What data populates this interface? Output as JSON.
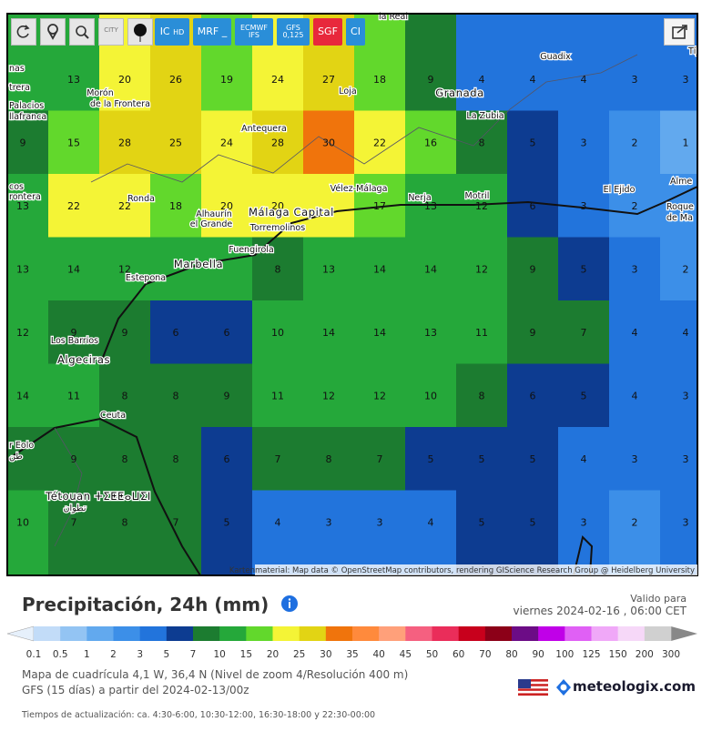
{
  "toolbar": {
    "buttons": [
      {
        "label": "CITY"
      },
      {
        "label": "IC",
        "sub": "HD"
      },
      {
        "label": "MRF",
        "sub": "_"
      },
      {
        "label": "ECMWF",
        "sub": "IFS"
      },
      {
        "label": "GFS",
        "sub": "0,125"
      },
      {
        "label": "SGF"
      },
      {
        "label": "CI"
      }
    ]
  },
  "map": {
    "places": [
      "la Real",
      "Tíj",
      "Guadix",
      "nas",
      "trera",
      "Morón",
      "de la Frontera",
      "Palacios",
      "llafranca",
      "Loja",
      "Granada",
      "La Zubia",
      "Antequera",
      "cos",
      "rontera",
      "Vélez-Málaga",
      "Nerja",
      "Motril",
      "El Ejido",
      "Alme",
      "Roque",
      "de Ma",
      "Ronda",
      "Alhaurín",
      "el Grande",
      "Málaga Capital",
      "Torremolinos",
      "Fuengirola",
      "Marbella",
      "Estepona",
      "Los Barrios",
      "Algeciras",
      "Ceuta",
      "r Eolo",
      "طن",
      "Tétouan ⵜⵉⵟⵟⴰⵡⵉⵏ",
      "تطوان"
    ],
    "grid": [
      [
        null,
        13,
        20,
        26,
        19,
        24,
        27,
        18,
        9,
        4,
        4,
        4,
        3,
        3
      ],
      [
        9,
        15,
        28,
        25,
        24,
        28,
        30,
        22,
        16,
        8,
        5,
        3,
        2,
        1
      ],
      [
        13,
        22,
        22,
        18,
        20,
        20,
        null,
        17,
        13,
        12,
        6,
        3,
        2,
        null
      ],
      [
        13,
        14,
        12,
        null,
        null,
        8,
        13,
        14,
        14,
        12,
        9,
        5,
        3,
        2
      ],
      [
        12,
        9,
        9,
        6,
        6,
        10,
        14,
        14,
        13,
        11,
        9,
        7,
        4,
        4
      ],
      [
        14,
        11,
        8,
        8,
        9,
        11,
        12,
        12,
        10,
        8,
        6,
        5,
        4,
        3
      ],
      [
        null,
        9,
        8,
        8,
        6,
        7,
        8,
        7,
        5,
        5,
        5,
        4,
        3,
        3
      ],
      [
        10,
        7,
        8,
        7,
        5,
        4,
        3,
        3,
        4,
        5,
        5,
        3,
        2,
        3
      ]
    ],
    "attribution": "Kartenmaterial: Map data © OpenStreetMap contributors, rendering GIScience Research Group @ Heidelberg University"
  },
  "footer": {
    "title": "Precipitación, 24h (mm)",
    "valid_label": "Valido para",
    "valid_time": "viernes 2024-02-16 , 06:00 CET",
    "legend": {
      "values": [
        0.1,
        0.5,
        1,
        2,
        3,
        5,
        7,
        10,
        15,
        20,
        25,
        30,
        35,
        40,
        45,
        50,
        60,
        70,
        80,
        90,
        100,
        125,
        150,
        200,
        300
      ],
      "colors": [
        "#c2dcf8",
        "#93c4f3",
        "#62a9ee",
        "#3c8fe8",
        "#2274dc",
        "#0d3c91",
        "#1c7c30",
        "#25a83a",
        "#62d82c",
        "#f4f436",
        "#e2d414",
        "#f0740c",
        "#ff8a3c",
        "#ffa07a",
        "#f56080",
        "#ea2d5a",
        "#c8001c",
        "#8c0018",
        "#6c0c86",
        "#c000e8",
        "#e060f5",
        "#f0a8f8",
        "#f6d8f8",
        "#d0d0d0"
      ]
    },
    "grid_info": "Mapa de cuadrícula 4,1 W, 36,4 N (Nivel de zoom 4/Resolución 400 m)",
    "model_info": "GFS (15 días) a partir del 2024-02-13/00z",
    "brand": "meteologix.com",
    "update_times": "Tiempos de actualización: ca. 4:30-6:00, 10:30-12:00, 16:30-18:00 y 22:30-00:00"
  }
}
